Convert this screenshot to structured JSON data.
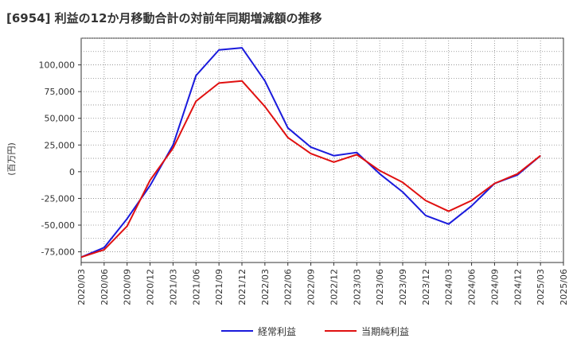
{
  "chart_data": {
    "type": "line",
    "title": "[6954]  利益の12か月移動合計の対前年同期増減額の推移",
    "ylabel": "(百万円)",
    "xlabel": "",
    "ylim": [
      -85000,
      125000
    ],
    "yticks": [
      -75000,
      -50000,
      -25000,
      0,
      25000,
      50000,
      75000,
      100000
    ],
    "ytick_labels": [
      "-75,000",
      "-50,000",
      "-25,000",
      "0",
      "25,000",
      "50,000",
      "75,000",
      "100,000"
    ],
    "grid": true,
    "legend_position": "bottom",
    "categories": [
      "2020/03",
      "2020/06",
      "2020/09",
      "2020/12",
      "2021/03",
      "2021/06",
      "2021/09",
      "2021/12",
      "2022/03",
      "2022/06",
      "2022/09",
      "2022/12",
      "2023/03",
      "2023/06",
      "2023/09",
      "2023/12",
      "2024/03",
      "2024/06",
      "2024/09",
      "2024/12",
      "2025/03",
      "2025/06"
    ],
    "series": [
      {
        "name": "経常利益",
        "color": "#1a1adc",
        "values": [
          -80000,
          -71000,
          -44000,
          -13000,
          25000,
          90000,
          114000,
          116000,
          85000,
          41000,
          23000,
          15000,
          18000,
          -2000,
          -19000,
          -41000,
          -49000,
          -32000,
          -11000,
          -3000,
          15000,
          null
        ]
      },
      {
        "name": "当期純利益",
        "color": "#e01010",
        "values": [
          -80000,
          -73000,
          -51000,
          -8000,
          22000,
          66000,
          83000,
          85000,
          61000,
          32000,
          17000,
          9000,
          16000,
          1000,
          -10000,
          -27000,
          -37000,
          -27000,
          -11000,
          -2000,
          15000,
          null
        ]
      }
    ]
  }
}
